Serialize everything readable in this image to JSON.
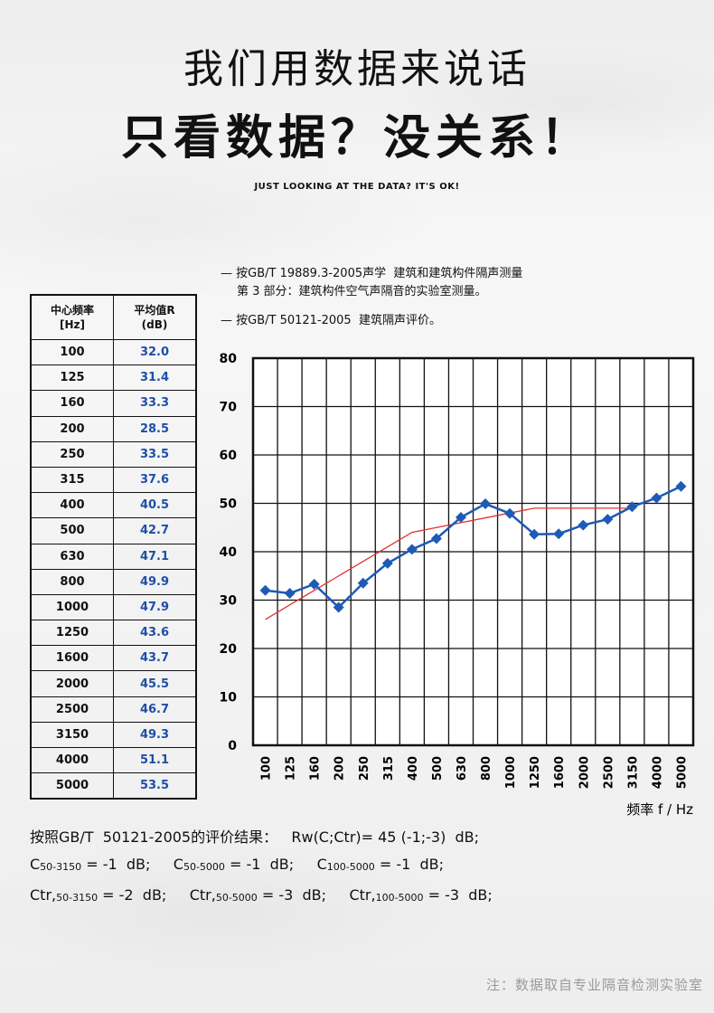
{
  "header": {
    "title_line1": "我们用数据来说话",
    "title_line2": "只看数据？没关系！",
    "subtitle": "JUST LOOKING AT THE DATA? IT'S OK!"
  },
  "standards": {
    "line1": "— 按GB/T 19889.3-2005声学  建筑和建筑构件隔声测量",
    "line2": "第 3 部分：建筑构件空气声隔音的实验室测量。",
    "line3": "— 按GB/T 50121-2005  建筑隔声评价。"
  },
  "table": {
    "header_freq_line1": "中心频率",
    "header_freq_line2": "[Hz]",
    "header_avg_line1": "平均值R",
    "header_avg_line2": "(dB)",
    "rows": [
      {
        "freq": "100",
        "value": "32.0"
      },
      {
        "freq": "125",
        "value": "31.4"
      },
      {
        "freq": "160",
        "value": "33.3"
      },
      {
        "freq": "200",
        "value": "28.5"
      },
      {
        "freq": "250",
        "value": "33.5"
      },
      {
        "freq": "315",
        "value": "37.6"
      },
      {
        "freq": "400",
        "value": "40.5"
      },
      {
        "freq": "500",
        "value": "42.7"
      },
      {
        "freq": "630",
        "value": "47.1"
      },
      {
        "freq": "800",
        "value": "49.9"
      },
      {
        "freq": "1000",
        "value": "47.9"
      },
      {
        "freq": "1250",
        "value": "43.6"
      },
      {
        "freq": "1600",
        "value": "43.7"
      },
      {
        "freq": "2000",
        "value": "45.5"
      },
      {
        "freq": "2500",
        "value": "46.7"
      },
      {
        "freq": "3150",
        "value": "49.3"
      },
      {
        "freq": "4000",
        "value": "51.1"
      },
      {
        "freq": "5000",
        "value": "53.5"
      }
    ]
  },
  "chart_data": {
    "type": "line",
    "xlabel": "频率 f / Hz",
    "categories": [
      "100",
      "125",
      "160",
      "200",
      "250",
      "315",
      "400",
      "500",
      "630",
      "800",
      "1000",
      "1250",
      "1600",
      "2000",
      "2500",
      "3150",
      "4000",
      "5000"
    ],
    "ylim": [
      0,
      80
    ],
    "yticks": [
      0,
      10,
      20,
      30,
      40,
      50,
      60,
      70,
      80
    ],
    "grid": true,
    "series": [
      {
        "color": "#1e5bb5",
        "marker": "diamond",
        "values": [
          32.0,
          31.4,
          33.3,
          28.5,
          33.5,
          37.6,
          40.5,
          42.7,
          47.1,
          49.9,
          47.9,
          43.6,
          43.7,
          45.5,
          46.7,
          49.3,
          51.1,
          53.5
        ]
      },
      {
        "color": "#e53030",
        "values": [
          26.0,
          29.0,
          32.0,
          35.0,
          38.0,
          41.0,
          44.0,
          45.0,
          46.0,
          47.0,
          48.0,
          49.0,
          49.0,
          49.0,
          49.0,
          49.0,
          null,
          null
        ]
      }
    ]
  },
  "results": {
    "line1": "按照GB/T  50121-2005的评价结果：   Rw(C;Ctr)= 45 (-1;-3)  dB;",
    "l2_a_pre": "C",
    "l2_a_sub": "50-3150",
    "l2_a_post": " = -1  dB;     ",
    "l2_b_pre": "C",
    "l2_b_sub": "50-5000",
    "l2_b_post": " = -1  dB;     ",
    "l2_c_pre": "C",
    "l2_c_sub": "100-5000",
    "l2_c_post": " = -1  dB;",
    "l3_a_pre": "Ctr,",
    "l3_a_sub": "50-3150",
    "l3_a_post": " = -2  dB;     ",
    "l3_b_pre": "Ctr,",
    "l3_b_sub": "50-5000",
    "l3_b_post": " = -3  dB;     ",
    "l3_c_pre": "Ctr,",
    "l3_c_sub": "100-5000",
    "l3_c_post": " = -3  dB;"
  },
  "note": "注：数据取自专业隔音检测实验室"
}
